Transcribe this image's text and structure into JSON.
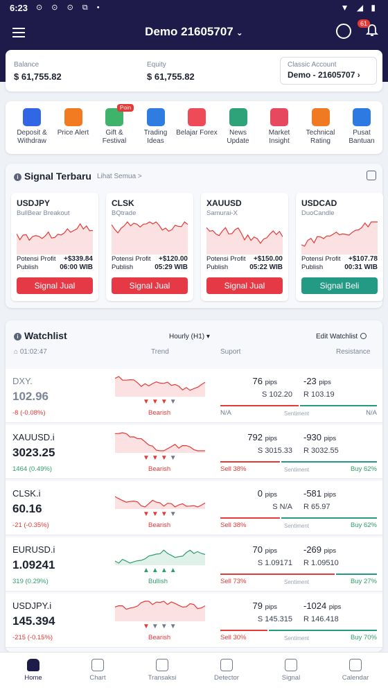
{
  "status": {
    "time": "6:23",
    "left_icons": "⊙ ⊙ ⊙ ⧉ •",
    "right_icons": "▼ ◢ ▮"
  },
  "header": {
    "account_title": "Demo 21605707",
    "notification_count": "61"
  },
  "balance": {
    "balance_label": "Balance",
    "balance_value": "$ 61,755.82",
    "equity_label": "Equity",
    "equity_value": "$ 61,755.82",
    "account_type": "Classic Account",
    "account_id": "Demo - 21605707"
  },
  "menu": [
    {
      "label": "Deposit & Withdraw",
      "icon": "wallet-icon",
      "color": "#3166e4"
    },
    {
      "label": "Price Alert",
      "icon": "bulb-icon",
      "color": "#f27b21"
    },
    {
      "label": "Gift & Festival",
      "icon": "gift-icon",
      "color": "#3fb26b",
      "badge": "Poin"
    },
    {
      "label": "Trading Ideas",
      "icon": "chart-icon",
      "color": "#2f7de1"
    },
    {
      "label": "Belajar Forex",
      "icon": "video-icon",
      "color": "#ef4a57"
    },
    {
      "label": "News Update",
      "icon": "globe-icon",
      "color": "#2ea37a"
    },
    {
      "label": "Market Insight",
      "icon": "insight-icon",
      "color": "#e5485f"
    },
    {
      "label": "Technical Rating",
      "icon": "rating-icon",
      "color": "#f07a22"
    },
    {
      "label": "Pusat Bantuan",
      "icon": "headset-icon",
      "color": "#2e7ae3"
    }
  ],
  "signals": {
    "title": "Signal Terbaru",
    "see_all": "Lihat Semua >",
    "profit_label": "Potensi Profit",
    "publish_label": "Publish",
    "items": [
      {
        "symbol": "USDJPY",
        "strategy": "BullBear Breakout",
        "profit": "+$339.84",
        "publish": "06:00 WIB",
        "action": "Signal Jual",
        "action_color": "#e63946",
        "line_color": "#e53935"
      },
      {
        "symbol": "CLSK",
        "strategy": "BQtrade",
        "profit": "+$120.00",
        "publish": "05:29 WIB",
        "action": "Signal Jual",
        "action_color": "#e63946",
        "line_color": "#e53935"
      },
      {
        "symbol": "XAUUSD",
        "strategy": "Samurai-X",
        "profit": "+$150.00",
        "publish": "05:22 WIB",
        "action": "Signal Jual",
        "action_color": "#e63946",
        "line_color": "#e53935"
      },
      {
        "symbol": "USDCAD",
        "strategy": "DuoCandle",
        "profit": "+$107.78",
        "publish": "00:31 WIB",
        "action": "Signal Beli",
        "action_color": "#239a84",
        "line_color": "#e53935"
      }
    ]
  },
  "watchlist": {
    "title": "Watchlist",
    "timeframe": "Hourly (H1)",
    "edit_label": "Edit Watchlist",
    "time": "01:02:47",
    "col_trend": "Trend",
    "col_support": "Suport",
    "col_resistance": "Resistance",
    "sentiment_label": "Sentiment",
    "pips_unit": "pips",
    "rows": [
      {
        "symbol": "DXY.",
        "price": "102.96",
        "change": "-8 (-0.08%)",
        "trend": "Bearish",
        "down_count": 3,
        "support_pips": "76",
        "resist_pips": "-23",
        "support": "S 102.20",
        "resist": "R 103.19",
        "sell": "N/A",
        "buy": "N/A",
        "sell_frac": 0.5,
        "muted": true
      },
      {
        "symbol": "XAUUSD.i",
        "price": "3023.25",
        "change": "1464 (0.49%)",
        "trend": "Bearish",
        "down_count": 3,
        "support_pips": "792",
        "resist_pips": "-930",
        "support": "S 3015.33",
        "resist": "R 3032.55",
        "sell": "Sell 38%",
        "buy": "Buy 62%",
        "sell_frac": 0.38
      },
      {
        "symbol": "CLSK.i",
        "price": "60.16",
        "change": "-21 (-0.35%)",
        "trend": "Bearish",
        "down_count": 3,
        "support_pips": "0",
        "resist_pips": "-581",
        "support": "S N/A",
        "resist": "R 65.97",
        "sell": "Sell 38%",
        "buy": "Buy 62%",
        "sell_frac": 0.38
      },
      {
        "symbol": "EURUSD.i",
        "price": "1.09241",
        "change": "319 (0.29%)",
        "trend": "Bullish",
        "down_count": 0,
        "support_pips": "70",
        "resist_pips": "-269",
        "support": "S 1.09171",
        "resist": "R 1.09510",
        "sell": "Sell 73%",
        "buy": "Buy 27%",
        "sell_frac": 0.73
      },
      {
        "symbol": "USDJPY.i",
        "price": "145.394",
        "change": "-215 (-0.15%)",
        "trend": "Bearish",
        "down_count": 1,
        "support_pips": "79",
        "resist_pips": "-1024",
        "support": "S 145.315",
        "resist": "R 146.418",
        "sell": "Sell 30%",
        "buy": "Buy 70%",
        "sell_frac": 0.3
      }
    ]
  },
  "nav": [
    {
      "label": "Home",
      "active": true
    },
    {
      "label": "Chart"
    },
    {
      "label": "Transaksi"
    },
    {
      "label": "Detector"
    },
    {
      "label": "Signal"
    },
    {
      "label": "Calendar"
    }
  ]
}
